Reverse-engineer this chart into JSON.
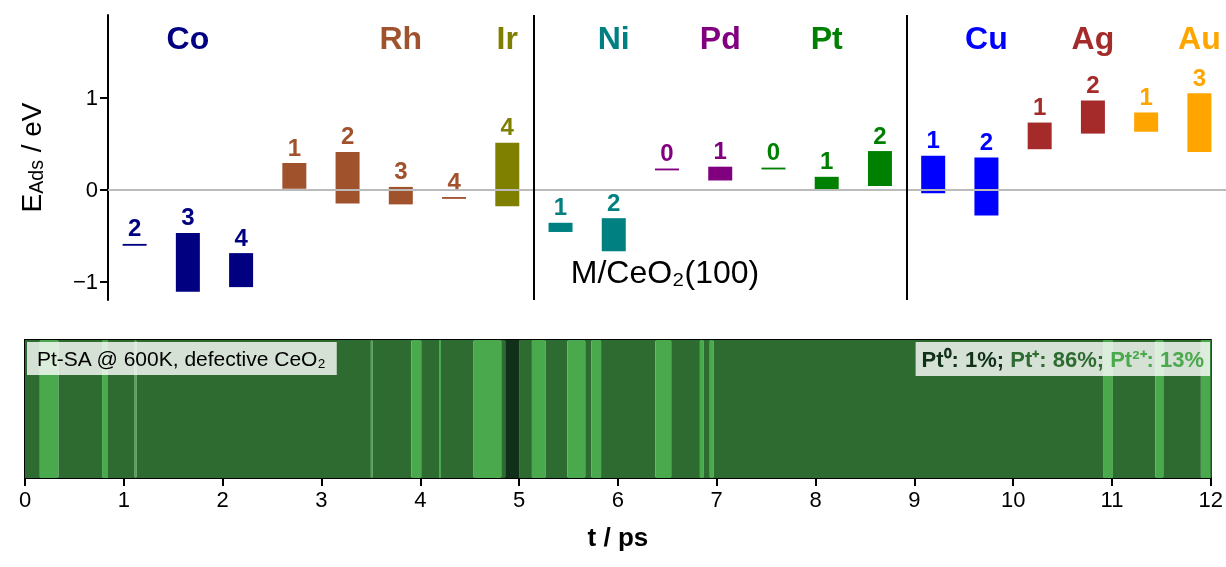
{
  "chart_data": [
    {
      "type": "bar",
      "ylabel": "E$_{Ads}$ / eV",
      "categories": [
        null,
        null,
        null,
        null,
        null,
        null,
        null,
        null,
        null,
        null,
        null,
        null,
        null,
        null,
        null,
        null,
        null,
        null,
        null,
        null,
        null
      ],
      "ylim": [
        -1.2,
        1.9
      ],
      "yticks": [
        {
          "value": -1,
          "label": "−1"
        },
        0,
        1
      ],
      "series": [
        {
          "name": "Co",
          "color": "#000080",
          "base": [
            -0.61,
            -1.11,
            -1.06,
            null,
            null,
            null,
            null,
            null,
            null,
            null,
            null,
            null,
            null,
            null,
            null,
            null,
            null,
            null,
            null,
            null,
            null
          ],
          "values": [
            0.02,
            0.64,
            0.37,
            null,
            null,
            null,
            null,
            null,
            null,
            null,
            null,
            null,
            null,
            null,
            null,
            null,
            null,
            null,
            null,
            null,
            null
          ]
        },
        {
          "name": "Rh",
          "color": "#a0522d",
          "base": [
            null,
            null,
            null,
            0.01,
            -0.15,
            -0.16,
            -0.1,
            null,
            null,
            null,
            null,
            null,
            null,
            null,
            null,
            null,
            null,
            null,
            null,
            null,
            null
          ],
          "values": [
            null,
            null,
            null,
            0.28,
            0.56,
            0.19,
            0.02,
            null,
            null,
            null,
            null,
            null,
            null,
            null,
            null,
            null,
            null,
            null,
            null,
            null,
            null
          ]
        },
        {
          "name": "Ir",
          "color": "#808000",
          "base": [
            null,
            null,
            null,
            null,
            null,
            null,
            null,
            -0.18,
            null,
            null,
            null,
            null,
            null,
            null,
            null,
            null,
            null,
            null,
            null,
            null,
            null
          ],
          "values": [
            null,
            null,
            null,
            null,
            null,
            null,
            null,
            0.69,
            null,
            null,
            null,
            null,
            null,
            null,
            null,
            null,
            null,
            null,
            null,
            null,
            null
          ]
        },
        {
          "name": "Ni",
          "color": "#008080",
          "base": [
            null,
            null,
            null,
            null,
            null,
            null,
            null,
            null,
            -0.46,
            -0.67,
            null,
            null,
            null,
            null,
            null,
            null,
            null,
            null,
            null,
            null,
            null
          ],
          "values": [
            null,
            null,
            null,
            null,
            null,
            null,
            null,
            null,
            0.1,
            0.36,
            null,
            null,
            null,
            null,
            null,
            null,
            null,
            null,
            null,
            null,
            null
          ]
        },
        {
          "name": "Pd",
          "color": "#800080",
          "base": [
            null,
            null,
            null,
            null,
            null,
            null,
            null,
            null,
            null,
            null,
            0.21,
            0.1,
            null,
            null,
            null,
            null,
            null,
            null,
            null,
            null,
            null
          ],
          "values": [
            null,
            null,
            null,
            null,
            null,
            null,
            null,
            null,
            null,
            null,
            0.02,
            0.15,
            null,
            null,
            null,
            null,
            null,
            null,
            null,
            null,
            null
          ]
        },
        {
          "name": "Pt",
          "color": "#008000",
          "base": [
            null,
            null,
            null,
            null,
            null,
            null,
            null,
            null,
            null,
            null,
            null,
            null,
            0.22,
            -0.01,
            0.04,
            null,
            null,
            null,
            null,
            null,
            null
          ],
          "values": [
            null,
            null,
            null,
            null,
            null,
            null,
            null,
            null,
            null,
            null,
            null,
            null,
            0.02,
            0.15,
            0.38,
            null,
            null,
            null,
            null,
            null,
            null
          ]
        },
        {
          "name": "Cu",
          "color": "#0000ff",
          "base": [
            null,
            null,
            null,
            null,
            null,
            null,
            null,
            null,
            null,
            null,
            null,
            null,
            null,
            null,
            null,
            -0.04,
            -0.28,
            null,
            null,
            null,
            null
          ],
          "values": [
            null,
            null,
            null,
            null,
            null,
            null,
            null,
            null,
            null,
            null,
            null,
            null,
            null,
            null,
            null,
            0.41,
            0.63,
            null,
            null,
            null,
            null
          ]
        },
        {
          "name": "Ag",
          "color": "#a52a2a",
          "base": [
            null,
            null,
            null,
            null,
            null,
            null,
            null,
            null,
            null,
            null,
            null,
            null,
            null,
            null,
            null,
            null,
            null,
            0.44,
            0.61,
            null,
            null
          ],
          "values": [
            null,
            null,
            null,
            null,
            null,
            null,
            null,
            null,
            null,
            null,
            null,
            null,
            null,
            null,
            null,
            null,
            null,
            0.29,
            0.36,
            null,
            null
          ]
        },
        {
          "name": "Au",
          "color": "#ffa500",
          "base": [
            null,
            null,
            null,
            null,
            null,
            null,
            null,
            null,
            null,
            null,
            null,
            null,
            null,
            null,
            null,
            null,
            null,
            null,
            null,
            0.63,
            0.41
          ],
          "values": [
            null,
            null,
            null,
            null,
            null,
            null,
            null,
            null,
            null,
            null,
            null,
            null,
            null,
            null,
            null,
            null,
            null,
            null,
            null,
            0.21,
            0.64
          ]
        }
      ],
      "ref_lines": [
        {
          "axis": "y",
          "value": 0,
          "color": "#bbbbbb"
        }
      ],
      "annotations": [
        "2",
        "3",
        "4",
        "1",
        "2",
        "3",
        "4",
        "4",
        "1",
        "2",
        "0",
        "1",
        "0",
        "1",
        "2",
        "1",
        "2",
        "1",
        "2",
        "1",
        "3",
        "M/CeO₂(100)"
      ]
    },
    {
      "type": "bar",
      "orientation": "horizontal",
      "stacked": true,
      "categories": [
        null
      ],
      "xlabel": "t / ps",
      "xlim": [
        0,
        12
      ],
      "xticks": [
        0,
        1,
        2,
        3,
        4,
        5,
        6,
        7,
        8,
        9,
        10,
        11,
        12
      ],
      "series": [
        {
          "color": "#2e6b30",
          "values": [
            0.15
          ]
        },
        {
          "color": "#4aa84d",
          "values": [
            0.19
          ]
        },
        {
          "color": "#2e6b30",
          "values": [
            0.44
          ]
        },
        {
          "color": "#4aa84d",
          "values": [
            0.06
          ]
        },
        {
          "color": "#2e6b30",
          "values": [
            0.27
          ]
        },
        {
          "color": "#4aa84d",
          "values": [
            0.02
          ]
        },
        {
          "color": "#2e6b30",
          "values": [
            2.37
          ]
        },
        {
          "color": "#4aa84d",
          "values": [
            0.02
          ]
        },
        {
          "color": "#2e6b30",
          "values": [
            0.39
          ]
        },
        {
          "color": "#4aa84d",
          "values": [
            0.1
          ]
        },
        {
          "color": "#2e6b30",
          "values": [
            0.18
          ]
        },
        {
          "color": "#4aa84d",
          "values": [
            0.02
          ]
        },
        {
          "color": "#2e6b30",
          "values": [
            0.33
          ]
        },
        {
          "color": "#4aa84d",
          "values": [
            0.28
          ]
        },
        {
          "color": "#2e6b30",
          "values": [
            0.04
          ]
        },
        {
          "color": "#10301a",
          "values": [
            0.14
          ]
        },
        {
          "color": "#2e6b30",
          "values": [
            0.13
          ]
        },
        {
          "color": "#4aa84d",
          "values": [
            0.14
          ]
        },
        {
          "color": "#2e6b30",
          "values": [
            0.22
          ]
        },
        {
          "color": "#4aa84d",
          "values": [
            0.18
          ]
        },
        {
          "color": "#2e6b30",
          "values": [
            0.06
          ]
        },
        {
          "color": "#4aa84d",
          "values": [
            0.1
          ]
        },
        {
          "color": "#2e6b30",
          "values": [
            0.55
          ]
        },
        {
          "color": "#4aa84d",
          "values": [
            0.16
          ]
        },
        {
          "color": "#2e6b30",
          "values": [
            0.29
          ]
        },
        {
          "color": "#4aa84d",
          "values": [
            0.04
          ]
        },
        {
          "color": "#2e6b30",
          "values": [
            0.06
          ]
        },
        {
          "color": "#4aa84d",
          "values": [
            0.04
          ]
        },
        {
          "color": "#2e6b30",
          "values": [
            3.94
          ]
        },
        {
          "color": "#4aa84d",
          "values": [
            0.1
          ]
        },
        {
          "color": "#2e6b30",
          "values": [
            0.43
          ]
        },
        {
          "color": "#4aa84d",
          "values": [
            0.08
          ]
        },
        {
          "color": "#2e6b30",
          "values": [
            0.38
          ]
        },
        {
          "color": "#4aa84d",
          "values": [
            0.1
          ]
        }
      ],
      "annotations": [
        "Pt-SA @ 600K, defective CeO₂",
        "Pt⁰: 1%;",
        "Pt⁺: 86%;",
        "Pt²⁺: 13%"
      ]
    }
  ]
}
